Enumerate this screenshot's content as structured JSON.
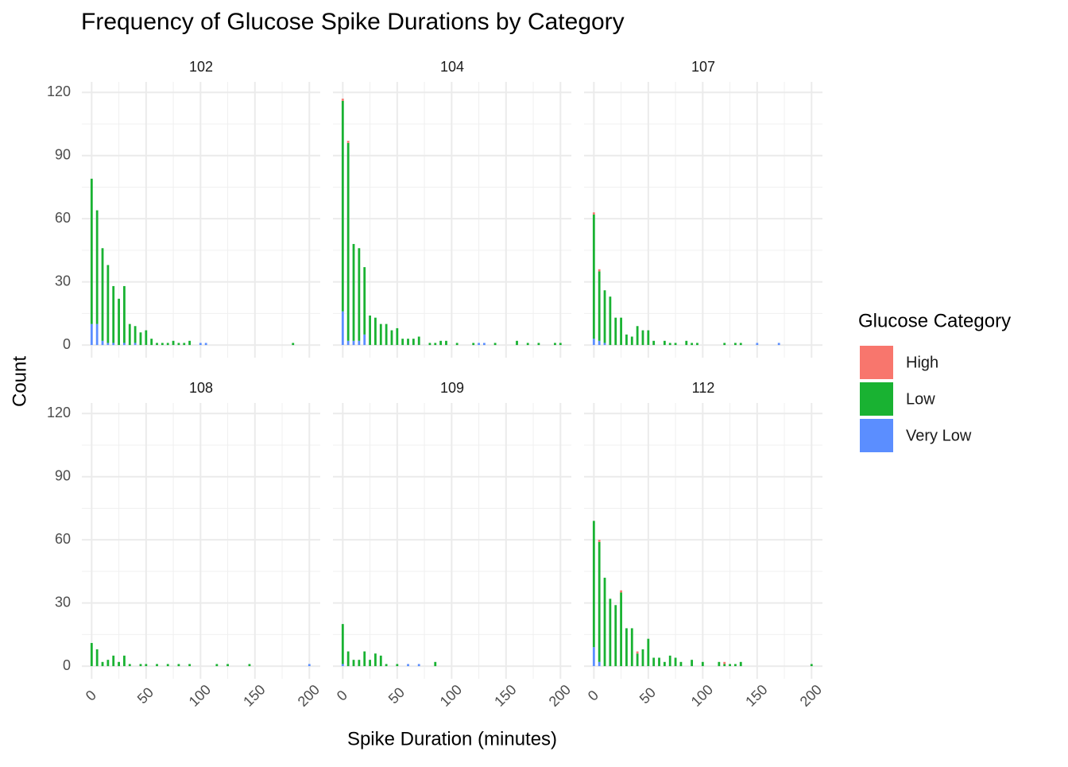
{
  "chart_data": {
    "type": "bar",
    "stacked": true,
    "title": "Frequency of Glucose Spike Durations by Category",
    "x_label": "Spike Duration (minutes)",
    "y_label": "Count",
    "legend_title": "Glucose Category",
    "series": [
      {
        "name": "High",
        "color": "#f8766d"
      },
      {
        "name": "Low",
        "color": "#19b232"
      },
      {
        "name": "Very Low",
        "color": "#5b8eff"
      }
    ],
    "xlim": [
      -9,
      210
    ],
    "xticks": [
      0,
      50,
      100,
      150,
      200
    ],
    "ylim": [
      -6,
      125
    ],
    "yticks": [
      0,
      30,
      60,
      90,
      120
    ],
    "grid": true,
    "facets": [
      {
        "title": "102",
        "x": [
          0,
          5,
          10,
          15,
          20,
          25,
          30,
          35,
          40,
          45,
          50,
          55,
          60,
          65,
          70,
          75,
          80,
          85,
          90,
          100,
          105,
          185
        ],
        "values": [
          [
            0,
            0,
            0,
            0,
            0,
            0,
            0,
            0,
            0,
            0,
            0,
            0,
            0,
            0,
            0,
            0,
            0,
            0,
            0,
            0,
            0,
            0
          ],
          [
            69,
            54,
            44,
            37,
            27,
            22,
            27,
            10,
            8,
            6,
            7,
            3,
            1,
            1,
            1,
            2,
            1,
            1,
            2,
            0,
            0,
            1
          ],
          [
            10,
            10,
            2,
            1,
            1,
            0,
            1,
            0,
            1,
            0,
            0,
            0,
            0,
            0,
            0,
            0,
            0,
            0,
            0,
            1,
            1,
            0
          ]
        ]
      },
      {
        "title": "104",
        "x": [
          0,
          5,
          10,
          15,
          20,
          25,
          30,
          35,
          40,
          45,
          50,
          55,
          60,
          65,
          70,
          80,
          85,
          90,
          95,
          105,
          120,
          125,
          130,
          140,
          160,
          170,
          180,
          195,
          200
        ],
        "values": [
          [
            1,
            1,
            0,
            0,
            0,
            0,
            0,
            0,
            0,
            0,
            0,
            0,
            0,
            0,
            0,
            0,
            0,
            0,
            0,
            0,
            0,
            0,
            0,
            0,
            0,
            0,
            0,
            0,
            0
          ],
          [
            100,
            94,
            46,
            44,
            32,
            14,
            13,
            10,
            10,
            7,
            8,
            3,
            3,
            3,
            4,
            1,
            1,
            2,
            2,
            1,
            1,
            0,
            0,
            1,
            2,
            1,
            1,
            1,
            1
          ],
          [
            16,
            2,
            2,
            2,
            5,
            0,
            0,
            0,
            0,
            0,
            0,
            0,
            0,
            0,
            0,
            0,
            0,
            0,
            0,
            0,
            0,
            1,
            1,
            0,
            0,
            0,
            0,
            0,
            0
          ]
        ]
      },
      {
        "title": "107",
        "x": [
          0,
          5,
          10,
          15,
          20,
          25,
          30,
          35,
          40,
          45,
          50,
          55,
          65,
          70,
          75,
          85,
          90,
          95,
          120,
          130,
          135,
          150,
          170
        ],
        "values": [
          [
            1,
            1,
            0,
            0,
            0,
            0,
            0,
            0,
            0,
            0,
            0,
            0,
            0,
            0,
            0,
            0,
            0,
            0,
            0,
            0,
            0,
            0,
            0
          ],
          [
            59,
            33,
            25,
            23,
            13,
            13,
            5,
            4,
            9,
            7,
            7,
            2,
            2,
            1,
            1,
            2,
            1,
            1,
            1,
            1,
            1,
            0,
            0
          ],
          [
            3,
            2,
            1,
            0,
            0,
            0,
            0,
            0,
            0,
            0,
            0,
            0,
            0,
            0,
            0,
            0,
            0,
            0,
            0,
            0,
            0,
            1,
            1
          ]
        ]
      },
      {
        "title": "108",
        "x": [
          0,
          5,
          10,
          15,
          20,
          25,
          30,
          35,
          45,
          50,
          60,
          70,
          80,
          90,
          115,
          125,
          145,
          200
        ],
        "values": [
          [
            0,
            0,
            0,
            0,
            0,
            0,
            0,
            0,
            0,
            0,
            0,
            0,
            0,
            0,
            0,
            0,
            0,
            0
          ],
          [
            11,
            8,
            2,
            3,
            5,
            2,
            5,
            1,
            1,
            1,
            1,
            1,
            1,
            1,
            1,
            1,
            1,
            0
          ],
          [
            0,
            0,
            0,
            0,
            0,
            0,
            0,
            0,
            0,
            0,
            0,
            0,
            0,
            0,
            0,
            0,
            0,
            1
          ]
        ]
      },
      {
        "title": "109",
        "x": [
          0,
          5,
          10,
          15,
          20,
          25,
          30,
          35,
          40,
          50,
          60,
          70,
          85
        ],
        "values": [
          [
            0,
            0,
            0,
            0,
            0,
            0,
            0,
            0,
            0,
            0,
            0,
            0,
            0
          ],
          [
            19,
            7,
            3,
            3,
            7,
            3,
            6,
            5,
            1,
            1,
            0,
            0,
            2
          ],
          [
            1,
            0,
            0,
            0,
            0,
            0,
            0,
            0,
            0,
            0,
            1,
            1,
            0
          ]
        ]
      },
      {
        "title": "112",
        "x": [
          0,
          5,
          10,
          15,
          20,
          25,
          30,
          35,
          40,
          45,
          50,
          55,
          60,
          65,
          70,
          75,
          80,
          90,
          100,
          115,
          120,
          125,
          130,
          135,
          200
        ],
        "values": [
          [
            0,
            1,
            0,
            0,
            0,
            1,
            0,
            0,
            1,
            0,
            0,
            0,
            0,
            0,
            0,
            0,
            0,
            0,
            0,
            0,
            1,
            0,
            0,
            0,
            0
          ],
          [
            60,
            57,
            42,
            32,
            29,
            35,
            18,
            18,
            6,
            8,
            13,
            4,
            4,
            2,
            5,
            4,
            2,
            3,
            2,
            2,
            1,
            1,
            1,
            2,
            1
          ],
          [
            9,
            2,
            0,
            0,
            0,
            0,
            0,
            0,
            0,
            0,
            0,
            0,
            0,
            0,
            0,
            0,
            0,
            0,
            0,
            0,
            0,
            0,
            0,
            0,
            0
          ]
        ]
      }
    ]
  }
}
